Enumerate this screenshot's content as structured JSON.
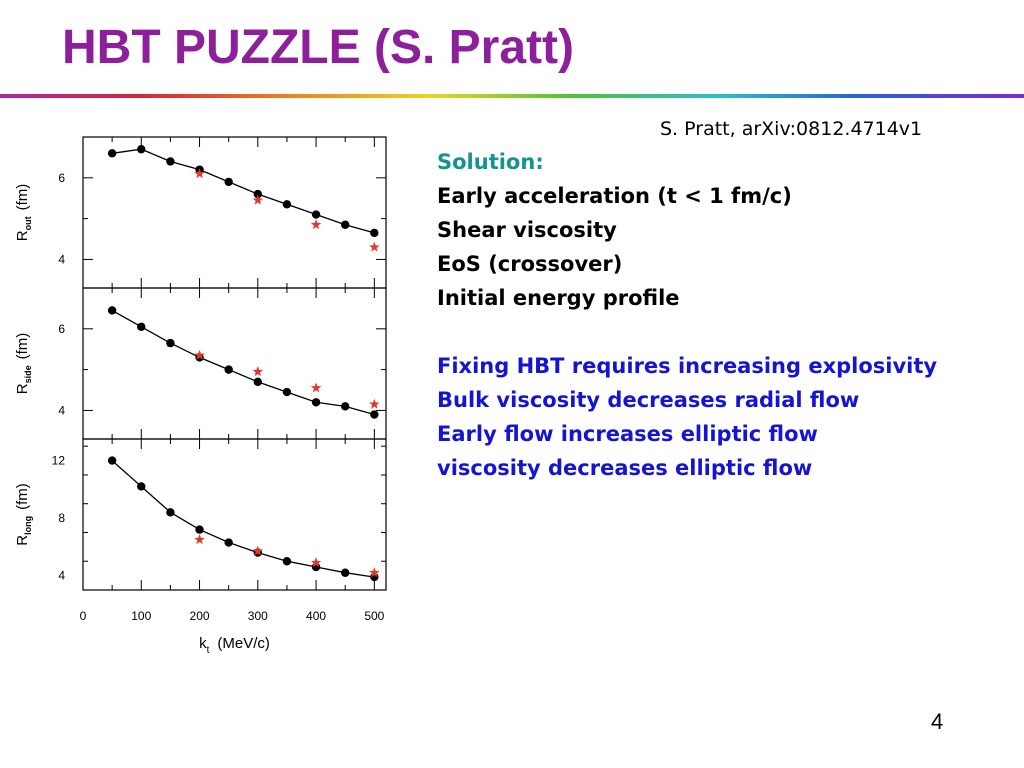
{
  "title": "HBT PUZZLE (S. Pratt)",
  "citation": "S. Pratt, arXiv:0812.4714v1",
  "notes": {
    "heading": "Solution:",
    "items": [
      "Early acceleration (t < 1 fm/c)",
      "Shear viscosity",
      "EoS (crossover)",
      "Initial energy profile"
    ],
    "conclusions": [
      "Fixing HBT requires increasing explosivity",
      "Bulk viscosity decreases radial flow",
      "Early flow increases elliptic flow",
      "viscosity decreases elliptic flow"
    ]
  },
  "page_number": "4",
  "colors": {
    "title": "#8e1f9a",
    "heading": "#14948f",
    "conclusions": "#1414d2",
    "stars": "#e03a2a"
  },
  "chart_data": [
    {
      "type": "line",
      "ylabel": "R_out (fm)",
      "ylabel_main": "R",
      "ylabel_sub": "out",
      "ylabel_unit": "(fm)",
      "ylim": [
        3.3,
        7.0
      ],
      "yticks": [
        4,
        6
      ],
      "xlim": [
        0,
        520
      ],
      "series": [
        {
          "marker": "circle",
          "x": [
            50,
            100,
            150,
            200,
            250,
            300,
            350,
            400,
            450,
            500
          ],
          "y": [
            6.6,
            6.7,
            6.4,
            6.2,
            5.9,
            5.6,
            5.35,
            5.1,
            4.85,
            4.65
          ]
        },
        {
          "marker": "star",
          "x": [
            200,
            300,
            400,
            500
          ],
          "y": [
            6.1,
            5.45,
            4.85,
            4.3
          ]
        }
      ]
    },
    {
      "type": "line",
      "ylabel": "R_side (fm)",
      "ylabel_main": "R",
      "ylabel_sub": "side",
      "ylabel_unit": "(fm)",
      "ylim": [
        3.3,
        7.0
      ],
      "yticks": [
        4,
        6
      ],
      "xlim": [
        0,
        520
      ],
      "series": [
        {
          "marker": "circle",
          "x": [
            50,
            100,
            150,
            200,
            250,
            300,
            350,
            400,
            450,
            500
          ],
          "y": [
            6.45,
            6.05,
            5.65,
            5.3,
            5.0,
            4.7,
            4.45,
            4.2,
            4.1,
            3.9
          ]
        },
        {
          "marker": "star",
          "x": [
            200,
            300,
            400,
            500
          ],
          "y": [
            5.35,
            4.95,
            4.55,
            4.15
          ]
        }
      ]
    },
    {
      "type": "line",
      "ylabel": "R_long (fm)",
      "ylabel_main": "R",
      "ylabel_sub": "long",
      "ylabel_unit": "(fm)",
      "ylim": [
        3.0,
        13.5
      ],
      "yticks": [
        4,
        8,
        12
      ],
      "xlim": [
        0,
        520
      ],
      "xticks": [
        0,
        100,
        200,
        300,
        400,
        500
      ],
      "xlabel": "k_t (MeV/c)",
      "xlabel_main": "k",
      "xlabel_sub": "t",
      "xlabel_unit": "(MeV/c)",
      "series": [
        {
          "marker": "circle",
          "x": [
            50,
            100,
            150,
            200,
            250,
            300,
            350,
            400,
            450,
            500
          ],
          "y": [
            12.0,
            10.2,
            8.4,
            7.2,
            6.3,
            5.6,
            5.0,
            4.6,
            4.2,
            3.9
          ]
        },
        {
          "marker": "star",
          "x": [
            200,
            300,
            400,
            500
          ],
          "y": [
            6.5,
            5.7,
            4.9,
            4.2
          ]
        }
      ]
    }
  ]
}
